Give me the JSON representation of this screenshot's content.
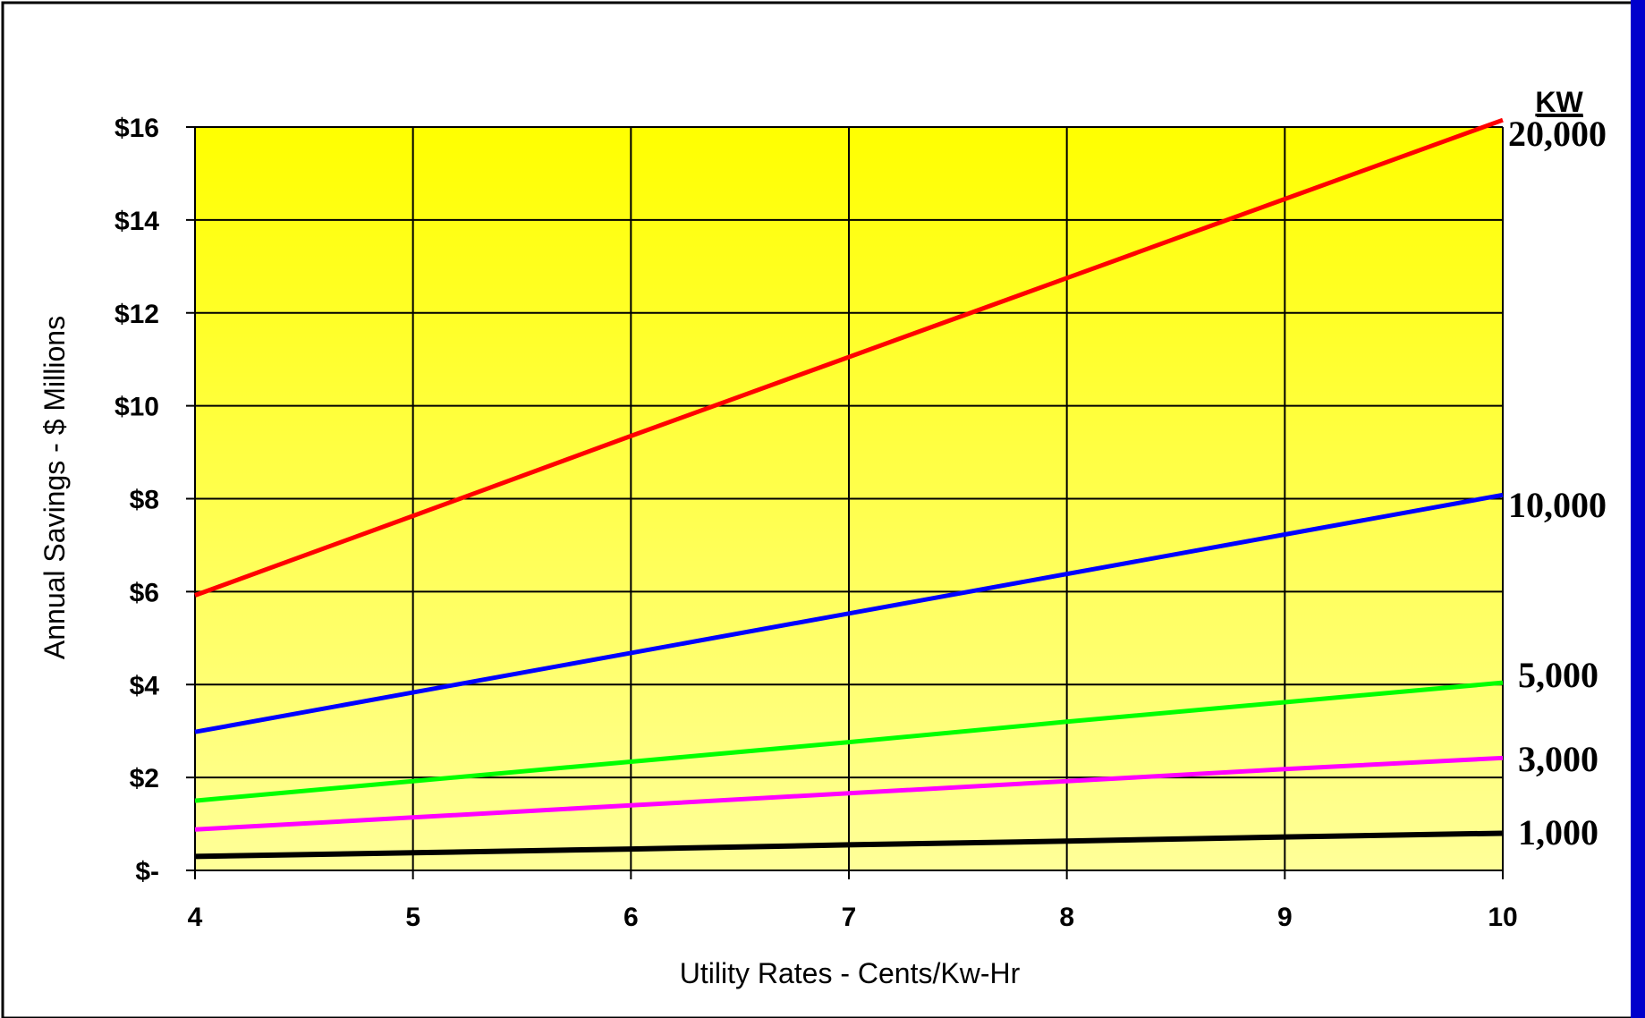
{
  "colors": {
    "plot_top": "#ffff00",
    "plot_bottom": "#ffff99",
    "frame_border": "#000000",
    "side_bar": "#0000cc"
  },
  "chart_data": {
    "type": "line",
    "title": "",
    "xlabel": "Utility Rates - Cents/Kw-Hr",
    "ylabel": "Annual Savings - $ Millions",
    "legend_title": "KW",
    "legend_placement": "right (labels at line ends)",
    "grid": true,
    "x": [
      4,
      5,
      6,
      7,
      8,
      9,
      10
    ],
    "xlim": [
      4,
      10
    ],
    "ylim": [
      0,
      16
    ],
    "x_tick_labels": [
      "4",
      "5",
      "6",
      "7",
      "8",
      "9",
      "10"
    ],
    "y_ticks": [
      0,
      2,
      4,
      6,
      8,
      10,
      12,
      14,
      16
    ],
    "y_tick_labels": [
      "$-",
      "$2",
      "$4",
      "$6",
      "$8",
      "$10",
      "$12",
      "$14",
      "$16"
    ],
    "series": [
      {
        "name": "20,000",
        "color": "#ff0000",
        "values": [
          5.92,
          7.63,
          9.35,
          11.05,
          12.75,
          14.45,
          16.15
        ]
      },
      {
        "name": "10,000",
        "color": "#0000ff",
        "values": [
          2.98,
          3.83,
          4.68,
          5.53,
          6.38,
          7.23,
          8.08
        ]
      },
      {
        "name": "5,000",
        "color": "#00ff00",
        "values": [
          1.5,
          1.92,
          2.34,
          2.76,
          3.2,
          3.62,
          4.04
        ]
      },
      {
        "name": "3,000",
        "color": "#ff00ff",
        "values": [
          0.88,
          1.14,
          1.4,
          1.66,
          1.92,
          2.18,
          2.42
        ]
      },
      {
        "name": "1,000",
        "color": "#000000",
        "values": [
          0.3,
          0.38,
          0.46,
          0.55,
          0.63,
          0.72,
          0.8
        ]
      }
    ]
  }
}
